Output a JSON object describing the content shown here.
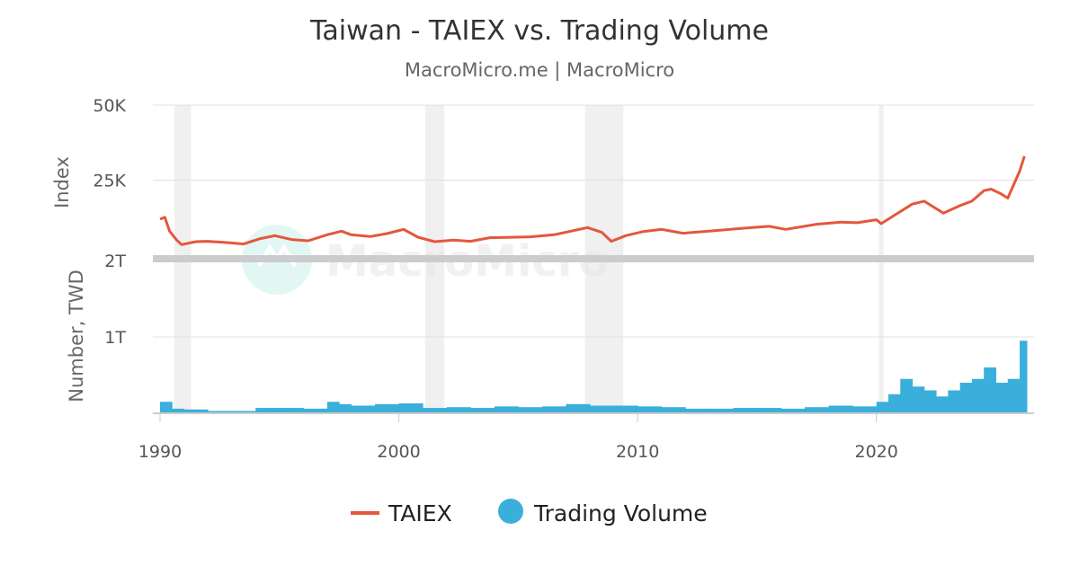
{
  "watermark": "MacroMicro",
  "chart_data": {
    "type": "line",
    "title": "Taiwan - TAIEX vs. Trading Volume",
    "subtitle": "MacroMicro.me | MacroMicro",
    "x_ticks": [
      "1990",
      "2000",
      "2010",
      "2020"
    ],
    "xlim": [
      1990,
      2026.3
    ],
    "recession_bands": [
      [
        1990.6,
        1991.3
      ],
      [
        2001.1,
        2001.9
      ],
      [
        2007.8,
        2009.4
      ],
      [
        2020.1,
        2020.3
      ]
    ],
    "colors": {
      "taiex": "#e4573d",
      "volume": "#3aafdb",
      "band": "#f0f0f0"
    },
    "panels": [
      {
        "name": "index",
        "ylabel": "Index",
        "y_ticks": [
          "50K",
          "25K"
        ],
        "y_tick_values": [
          50000,
          25000
        ],
        "ylim": [
          0,
          50000
        ]
      },
      {
        "name": "volume",
        "ylabel": "Number, TWD",
        "y_ticks": [
          "2T",
          "1T"
        ],
        "y_tick_values": [
          2000000000000,
          1000000000000
        ],
        "ylim": [
          0,
          2000000000000
        ]
      }
    ],
    "series": [
      {
        "name": "TAIEX",
        "panel": "index",
        "type": "line",
        "x": [
          1990.0,
          1990.2,
          1990.4,
          1990.7,
          1990.9,
          1991.5,
          1992.0,
          1992.8,
          1993.5,
          1994.2,
          1994.8,
          1995.5,
          1996.2,
          1997.0,
          1997.6,
          1998.0,
          1998.8,
          1999.5,
          2000.2,
          2000.8,
          2001.5,
          2002.3,
          2003.0,
          2003.8,
          2004.5,
          2005.5,
          2006.5,
          2007.5,
          2007.9,
          2008.5,
          2008.9,
          2009.5,
          2010.2,
          2011.0,
          2011.9,
          2013.0,
          2014.5,
          2015.5,
          2016.2,
          2017.5,
          2018.5,
          2019.2,
          2020.0,
          2020.2,
          2020.8,
          2021.5,
          2022.0,
          2022.8,
          2023.5,
          2024.0,
          2024.5,
          2024.8,
          2025.2,
          2025.5,
          2026.0,
          2026.2
        ],
        "values": [
          12000,
          12600,
          8000,
          5000,
          3500,
          4500,
          4600,
          4200,
          3700,
          5500,
          6500,
          5200,
          4800,
          6800,
          8000,
          6800,
          6200,
          7200,
          8600,
          6000,
          4500,
          5000,
          4600,
          5800,
          5900,
          6100,
          6800,
          8500,
          9200,
          7600,
          4600,
          6500,
          7800,
          8600,
          7300,
          8000,
          9000,
          9600,
          8600,
          10300,
          11000,
          10800,
          11800,
          10500,
          13500,
          17000,
          18000,
          14000,
          16500,
          18000,
          21500,
          22000,
          20500,
          19000,
          28000,
          33000
        ]
      },
      {
        "name": "Trading Volume",
        "panel": "volume",
        "type": "bar",
        "x": [
          1990.0,
          1990.5,
          1991.0,
          1992.0,
          1993.0,
          1994.0,
          1995.0,
          1996.0,
          1997.0,
          1997.5,
          1998.0,
          1999.0,
          2000.0,
          2001.0,
          2002.0,
          2003.0,
          2004.0,
          2005.0,
          2006.0,
          2007.0,
          2008.0,
          2009.0,
          2010.0,
          2011.0,
          2012.0,
          2013.0,
          2014.0,
          2015.0,
          2016.0,
          2017.0,
          2018.0,
          2019.0,
          2020.0,
          2020.5,
          2021.0,
          2021.5,
          2022.0,
          2022.5,
          2023.0,
          2023.5,
          2024.0,
          2024.5,
          2025.0,
          2025.5,
          2026.0
        ],
        "values": [
          150000000000,
          60000000000,
          50000000000,
          30000000000,
          30000000000,
          70000000000,
          70000000000,
          60000000000,
          150000000000,
          120000000000,
          100000000000,
          120000000000,
          130000000000,
          70000000000,
          80000000000,
          70000000000,
          90000000000,
          80000000000,
          90000000000,
          120000000000,
          100000000000,
          100000000000,
          90000000000,
          80000000000,
          60000000000,
          60000000000,
          70000000000,
          70000000000,
          60000000000,
          80000000000,
          100000000000,
          90000000000,
          150000000000,
          250000000000,
          450000000000,
          350000000000,
          300000000000,
          220000000000,
          300000000000,
          400000000000,
          450000000000,
          600000000000,
          400000000000,
          450000000000,
          950000000000
        ]
      }
    ],
    "legend": [
      "TAIEX",
      "Trading Volume"
    ],
    "legend_position": "bottom"
  }
}
